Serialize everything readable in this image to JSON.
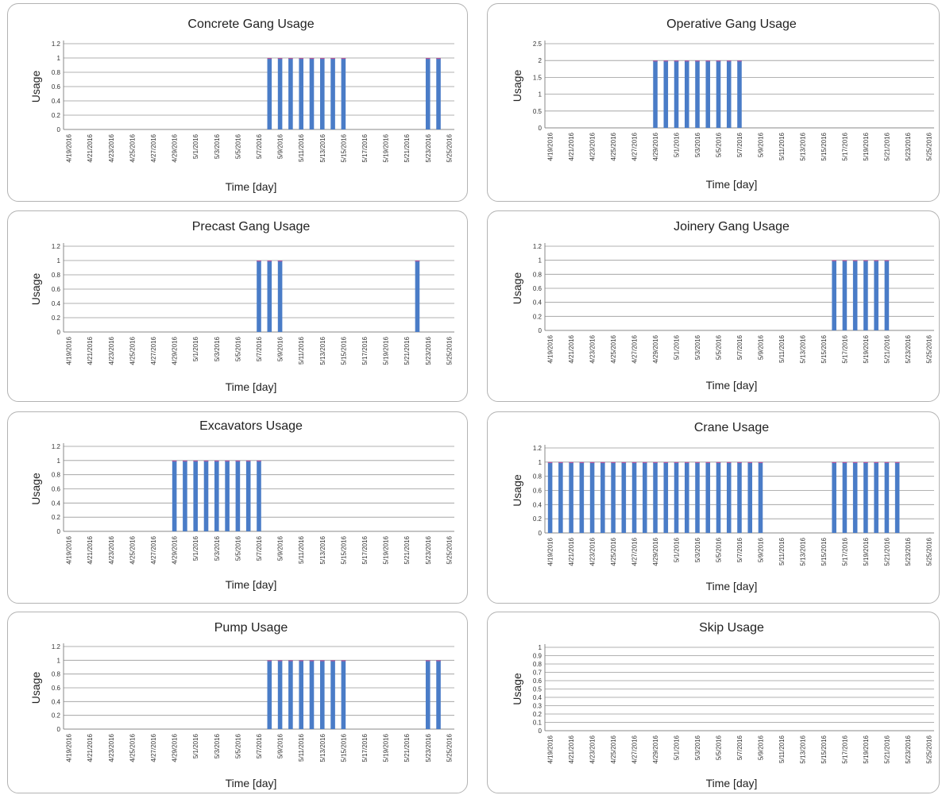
{
  "chart_data": [
    {
      "type": "bar",
      "title": "Concrete Gang Usage",
      "xlabel": "Time [day]",
      "ylabel": "Usage",
      "ylim": [
        0,
        1.2
      ],
      "yticks": [
        "0",
        "0.2",
        "0.4",
        "0.6",
        "0.8",
        "1",
        "1.2"
      ],
      "x_start": "2016-04-19",
      "x_end": "2016-05-25",
      "xtick_labels": [
        "4/19/2016",
        "4/21/2016",
        "4/23/2016",
        "4/25/2016",
        "4/27/2016",
        "4/29/2016",
        "5/1/2016",
        "5/3/2016",
        "5/5/2016",
        "5/7/2016",
        "5/9/2016",
        "5/11/2016",
        "5/13/2016",
        "5/15/2016",
        "5/17/2016",
        "5/19/2016",
        "5/21/2016",
        "5/23/2016",
        "5/25/2016"
      ],
      "xtick_days": [
        0,
        2,
        4,
        6,
        8,
        10,
        12,
        14,
        16,
        18,
        20,
        22,
        24,
        26,
        28,
        30,
        32,
        34,
        36
      ],
      "bars": [
        {
          "date": "5/8/2016",
          "value": 1
        },
        {
          "date": "5/9/2016",
          "value": 1
        },
        {
          "date": "5/10/2016",
          "value": 1
        },
        {
          "date": "5/11/2016",
          "value": 1
        },
        {
          "date": "5/12/2016",
          "value": 1
        },
        {
          "date": "5/13/2016",
          "value": 1
        },
        {
          "date": "5/14/2016",
          "value": 1
        },
        {
          "date": "5/15/2016",
          "value": 1
        },
        {
          "date": "5/23/2016",
          "value": 1
        },
        {
          "date": "5/24/2016",
          "value": 1
        }
      ],
      "grid": true
    },
    {
      "type": "bar",
      "title": "Operative Gang  Usage",
      "xlabel": "Time [day]",
      "ylabel": "Usage",
      "ylim": [
        0,
        2.5
      ],
      "yticks": [
        "0",
        "0.5",
        "1",
        "1.5",
        "2",
        "2.5"
      ],
      "x_start": "2016-04-19",
      "x_end": "2016-05-25",
      "xtick_labels": [
        "4/19/2016",
        "4/21/2016",
        "4/23/2016",
        "4/25/2016",
        "4/27/2016",
        "4/29/2016",
        "5/1/2016",
        "5/3/2016",
        "5/5/2016",
        "5/7/2016",
        "5/9/2016",
        "5/11/2016",
        "5/13/2016",
        "5/15/2016",
        "5/17/2016",
        "5/19/2016",
        "5/21/2016",
        "5/23/2016",
        "5/25/2016"
      ],
      "xtick_days": [
        0,
        2,
        4,
        6,
        8,
        10,
        12,
        14,
        16,
        18,
        20,
        22,
        24,
        26,
        28,
        30,
        32,
        34,
        36
      ],
      "bars": [
        {
          "date": "4/29/2016",
          "value": 2
        },
        {
          "date": "4/30/2016",
          "value": 2
        },
        {
          "date": "5/1/2016",
          "value": 2
        },
        {
          "date": "5/2/2016",
          "value": 2
        },
        {
          "date": "5/3/2016",
          "value": 2
        },
        {
          "date": "5/4/2016",
          "value": 2
        },
        {
          "date": "5/5/2016",
          "value": 2
        },
        {
          "date": "5/6/2016",
          "value": 2
        },
        {
          "date": "5/7/2016",
          "value": 2
        }
      ],
      "grid": true
    },
    {
      "type": "bar",
      "title": "Precast Gang Usage",
      "xlabel": "Time [day]",
      "ylabel": "Usage",
      "ylim": [
        0,
        1.2
      ],
      "yticks": [
        "0",
        "0.2",
        "0.4",
        "0.6",
        "0.8",
        "1",
        "1.2"
      ],
      "x_start": "2016-04-19",
      "x_end": "2016-05-25",
      "xtick_labels": [
        "4/19/2016",
        "4/21/2016",
        "4/23/2016",
        "4/25/2016",
        "4/27/2016",
        "4/29/2016",
        "5/1/2016",
        "5/3/2016",
        "5/5/2016",
        "5/7/2016",
        "5/9/2016",
        "5/11/2016",
        "5/13/2016",
        "5/15/2016",
        "5/17/2016",
        "5/19/2016",
        "5/21/2016",
        "5/23/2016",
        "5/25/2016"
      ],
      "xtick_days": [
        0,
        2,
        4,
        6,
        8,
        10,
        12,
        14,
        16,
        18,
        20,
        22,
        24,
        26,
        28,
        30,
        32,
        34,
        36
      ],
      "bars": [
        {
          "date": "5/7/2016",
          "value": 1
        },
        {
          "date": "5/8/2016",
          "value": 1
        },
        {
          "date": "5/9/2016",
          "value": 1
        },
        {
          "date": "5/22/2016",
          "value": 1
        }
      ],
      "grid": true
    },
    {
      "type": "bar",
      "title": "Joinery Gang Usage",
      "xlabel": "Time [day]",
      "ylabel": "Usage",
      "ylim": [
        0,
        1.2
      ],
      "yticks": [
        "0",
        "0.2",
        "0.4",
        "0.6",
        "0.8",
        "1",
        "1.2"
      ],
      "x_start": "2016-04-19",
      "x_end": "2016-05-25",
      "xtick_labels": [
        "4/19/2016",
        "4/21/2016",
        "4/23/2016",
        "4/25/2016",
        "4/27/2016",
        "4/29/2016",
        "5/1/2016",
        "5/3/2016",
        "5/5/2016",
        "5/7/2016",
        "5/9/2016",
        "5/11/2016",
        "5/13/2016",
        "5/15/2016",
        "5/17/2016",
        "5/19/2016",
        "5/21/2016",
        "5/23/2016",
        "5/25/2016"
      ],
      "xtick_days": [
        0,
        2,
        4,
        6,
        8,
        10,
        12,
        14,
        16,
        18,
        20,
        22,
        24,
        26,
        28,
        30,
        32,
        34,
        36
      ],
      "bars": [
        {
          "date": "5/16/2016",
          "value": 1
        },
        {
          "date": "5/17/2016",
          "value": 1
        },
        {
          "date": "5/18/2016",
          "value": 1
        },
        {
          "date": "5/19/2016",
          "value": 1
        },
        {
          "date": "5/20/2016",
          "value": 1
        },
        {
          "date": "5/21/2016",
          "value": 1
        }
      ],
      "grid": true
    },
    {
      "type": "bar",
      "title": "Excavators  Usage",
      "xlabel": "Time [day]",
      "ylabel": "Usage",
      "ylim": [
        0,
        1.2
      ],
      "yticks": [
        "0",
        "0.2",
        "0.4",
        "0.6",
        "0.8",
        "1",
        "1.2"
      ],
      "x_start": "2016-04-19",
      "x_end": "2016-05-25",
      "xtick_labels": [
        "4/19/2016",
        "4/21/2016",
        "4/23/2016",
        "4/25/2016",
        "4/27/2016",
        "4/29/2016",
        "5/1/2016",
        "5/3/2016",
        "5/5/2016",
        "5/7/2016",
        "5/9/2016",
        "5/11/2016",
        "5/13/2016",
        "5/15/2016",
        "5/17/2016",
        "5/19/2016",
        "5/21/2016",
        "5/23/2016",
        "5/25/2016"
      ],
      "xtick_days": [
        0,
        2,
        4,
        6,
        8,
        10,
        12,
        14,
        16,
        18,
        20,
        22,
        24,
        26,
        28,
        30,
        32,
        34,
        36
      ],
      "bars": [
        {
          "date": "4/29/2016",
          "value": 1
        },
        {
          "date": "4/30/2016",
          "value": 1
        },
        {
          "date": "5/1/2016",
          "value": 1
        },
        {
          "date": "5/2/2016",
          "value": 1
        },
        {
          "date": "5/3/2016",
          "value": 1
        },
        {
          "date": "5/4/2016",
          "value": 1
        },
        {
          "date": "5/5/2016",
          "value": 1
        },
        {
          "date": "5/6/2016",
          "value": 1
        },
        {
          "date": "5/7/2016",
          "value": 1
        }
      ],
      "grid": true
    },
    {
      "type": "bar",
      "title": "Crane  Usage",
      "xlabel": "Time [day]",
      "ylabel": "Usage",
      "ylim": [
        0,
        1.2
      ],
      "yticks": [
        "0",
        "0.2",
        "0.4",
        "0.6",
        "0.8",
        "1",
        "1.2"
      ],
      "x_start": "2016-04-19",
      "x_end": "2016-05-25",
      "xtick_labels": [
        "4/19/2016",
        "4/21/2016",
        "4/23/2016",
        "4/25/2016",
        "4/27/2016",
        "4/29/2016",
        "5/1/2016",
        "5/3/2016",
        "5/5/2016",
        "5/7/2016",
        "5/9/2016",
        "5/11/2016",
        "5/13/2016",
        "5/15/2016",
        "5/17/2016",
        "5/19/2016",
        "5/21/2016",
        "5/23/2016",
        "5/25/2016"
      ],
      "xtick_days": [
        0,
        2,
        4,
        6,
        8,
        10,
        12,
        14,
        16,
        18,
        20,
        22,
        24,
        26,
        28,
        30,
        32,
        34,
        36
      ],
      "bars": [
        {
          "date": "4/19/2016",
          "value": 1
        },
        {
          "date": "4/20/2016",
          "value": 1
        },
        {
          "date": "4/21/2016",
          "value": 1
        },
        {
          "date": "4/22/2016",
          "value": 1
        },
        {
          "date": "4/23/2016",
          "value": 1
        },
        {
          "date": "4/24/2016",
          "value": 1
        },
        {
          "date": "4/25/2016",
          "value": 1
        },
        {
          "date": "4/26/2016",
          "value": 1
        },
        {
          "date": "4/27/2016",
          "value": 1
        },
        {
          "date": "4/28/2016",
          "value": 1
        },
        {
          "date": "4/29/2016",
          "value": 1
        },
        {
          "date": "4/30/2016",
          "value": 1
        },
        {
          "date": "5/1/2016",
          "value": 1
        },
        {
          "date": "5/2/2016",
          "value": 1
        },
        {
          "date": "5/3/2016",
          "value": 1
        },
        {
          "date": "5/4/2016",
          "value": 1
        },
        {
          "date": "5/5/2016",
          "value": 1
        },
        {
          "date": "5/6/2016",
          "value": 1
        },
        {
          "date": "5/7/2016",
          "value": 1
        },
        {
          "date": "5/8/2016",
          "value": 1
        },
        {
          "date": "5/9/2016",
          "value": 1
        },
        {
          "date": "5/16/2016",
          "value": 1
        },
        {
          "date": "5/17/2016",
          "value": 1
        },
        {
          "date": "5/18/2016",
          "value": 1
        },
        {
          "date": "5/19/2016",
          "value": 1
        },
        {
          "date": "5/20/2016",
          "value": 1
        },
        {
          "date": "5/21/2016",
          "value": 1
        },
        {
          "date": "5/22/2016",
          "value": 1
        }
      ],
      "grid": true
    },
    {
      "type": "bar",
      "title": "Pump  Usage",
      "xlabel": "Time [day]",
      "ylabel": "Usage",
      "ylim": [
        0,
        1.2
      ],
      "yticks": [
        "0",
        "0.2",
        "0.4",
        "0.6",
        "0.8",
        "1",
        "1.2"
      ],
      "x_start": "2016-04-19",
      "x_end": "2016-05-25",
      "xtick_labels": [
        "4/19/2016",
        "4/21/2016",
        "4/23/2016",
        "4/25/2016",
        "4/27/2016",
        "4/29/2016",
        "5/1/2016",
        "5/3/2016",
        "5/5/2016",
        "5/7/2016",
        "5/9/2016",
        "5/11/2016",
        "5/13/2016",
        "5/15/2016",
        "5/17/2016",
        "5/19/2016",
        "5/21/2016",
        "5/23/2016",
        "5/25/2016"
      ],
      "xtick_days": [
        0,
        2,
        4,
        6,
        8,
        10,
        12,
        14,
        16,
        18,
        20,
        22,
        24,
        26,
        28,
        30,
        32,
        34,
        36
      ],
      "bars": [
        {
          "date": "5/8/2016",
          "value": 1
        },
        {
          "date": "5/9/2016",
          "value": 1
        },
        {
          "date": "5/10/2016",
          "value": 1
        },
        {
          "date": "5/11/2016",
          "value": 1
        },
        {
          "date": "5/12/2016",
          "value": 1
        },
        {
          "date": "5/13/2016",
          "value": 1
        },
        {
          "date": "5/14/2016",
          "value": 1
        },
        {
          "date": "5/15/2016",
          "value": 1
        },
        {
          "date": "5/23/2016",
          "value": 1
        },
        {
          "date": "5/24/2016",
          "value": 1
        }
      ],
      "grid": true
    },
    {
      "type": "bar",
      "title": "Skip  Usage",
      "xlabel": "Time [day]",
      "ylabel": "Usage",
      "ylim": [
        0,
        1
      ],
      "yticks": [
        "0",
        "0.1",
        "0.2",
        "0.3",
        "0.4",
        "0.5",
        "0.6",
        "0.7",
        "0.8",
        "0.9",
        "1"
      ],
      "x_start": "2016-04-19",
      "x_end": "2016-05-25",
      "xtick_labels": [
        "4/19/2016",
        "4/21/2016",
        "4/23/2016",
        "4/25/2016",
        "4/27/2016",
        "4/29/2016",
        "5/1/2016",
        "5/3/2016",
        "5/5/2016",
        "5/7/2016",
        "5/9/2016",
        "5/11/2016",
        "5/13/2016",
        "5/15/2016",
        "5/17/2016",
        "5/19/2016",
        "5/21/2016",
        "5/23/2016",
        "5/25/2016"
      ],
      "xtick_days": [
        0,
        2,
        4,
        6,
        8,
        10,
        12,
        14,
        16,
        18,
        20,
        22,
        24,
        26,
        28,
        30,
        32,
        34,
        36
      ],
      "bars": [],
      "grid": true
    }
  ],
  "colors": {
    "bar": "#4a7cc7",
    "bar_cap": "#b8569a",
    "grid": "#999999",
    "axis": "#888888"
  }
}
